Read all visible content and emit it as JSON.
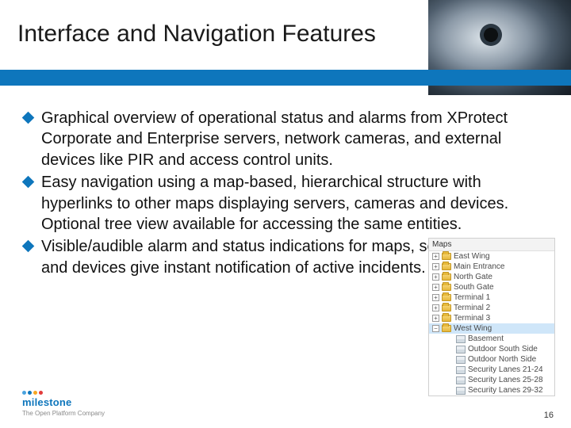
{
  "slide": {
    "title": "Interface and Navigation Features",
    "page_number": "16",
    "background_color": "#ffffff",
    "accent_bar_color": "#0e76bc",
    "text_color": "#111111",
    "title_fontsize_pt": 30,
    "body_fontsize_pt": 20
  },
  "bullets": [
    "Graphical overview of operational status and alarms from XProtect Corporate and Enterprise servers, network cameras, and external devices like PIR and access control units.",
    "Easy navigation using a map-based, hierarchical structure with hyperlinks to other maps displaying servers, cameras and devices. Optional tree view available for accessing the same entities.",
    "Visible/audible alarm and status indications for maps, servers, cameras and devices give instant notification of active incidents."
  ],
  "tree": {
    "header": "Maps",
    "items": [
      {
        "level": 1,
        "expander": "+",
        "icon": "folder",
        "label": "East Wing"
      },
      {
        "level": 1,
        "expander": "+",
        "icon": "folder",
        "label": "Main Entrance"
      },
      {
        "level": 1,
        "expander": "+",
        "icon": "folder",
        "label": "North Gate"
      },
      {
        "level": 1,
        "expander": "+",
        "icon": "folder",
        "label": "South Gate"
      },
      {
        "level": 1,
        "expander": "+",
        "icon": "folder",
        "label": "Terminal 1"
      },
      {
        "level": 1,
        "expander": "+",
        "icon": "folder",
        "label": "Terminal 2"
      },
      {
        "level": 1,
        "expander": "+",
        "icon": "folder",
        "label": "Terminal 3"
      },
      {
        "level": 1,
        "expander": "−",
        "icon": "folder",
        "label": "West Wing",
        "selected": true
      },
      {
        "level": 2,
        "icon": "map",
        "label": "Basement"
      },
      {
        "level": 2,
        "icon": "map",
        "label": "Outdoor South Side"
      },
      {
        "level": 2,
        "icon": "map",
        "label": "Outdoor North Side"
      },
      {
        "level": 2,
        "icon": "map",
        "label": "Security Lanes 21-24"
      },
      {
        "level": 2,
        "icon": "map",
        "label": "Security Lanes 25-28"
      },
      {
        "level": 2,
        "icon": "map",
        "label": "Security Lanes 29-32"
      }
    ]
  },
  "branding": {
    "logo_text": "milestone",
    "tagline": "The Open Platform Company",
    "dot_colors": [
      "#4aa3df",
      "#0e76bc",
      "#f6a623",
      "#e23b3b"
    ]
  }
}
